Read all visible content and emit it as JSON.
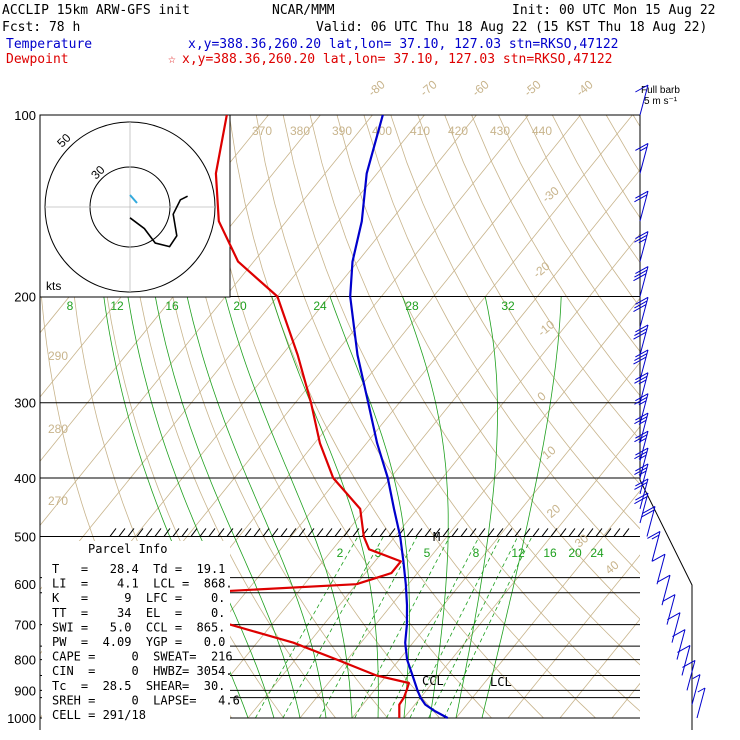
{
  "header": {
    "line1_left": "ACCLIP 15km ARW-GFS init",
    "line1_mid": "NCAR/MMM",
    "line1_right": "Init: 00 UTC Mon 15 Aug 22",
    "line2_left": "Fcst:   78 h",
    "line2_right": "Valid: 06 UTC Thu 18 Aug 22 (15 KST Thu 18 Aug 22)",
    "temp_label": "Temperature",
    "temp_info": "x,y=388.36,260.20   lat,lon= 37.10, 127.03  stn=RKSO,47122",
    "dew_label": "Dewpoint",
    "dew_info": "x,y=388.36,260.20   lat,lon= 37.10, 127.03  stn=RKSO,47122",
    "dew_star": "☆"
  },
  "barb_header": {
    "line1": "Full barb",
    "line2": "5 m s⁻¹"
  },
  "colors": {
    "temperature": "#0000cc",
    "dewpoint": "#dd0000",
    "isotherm": "#c8b48c",
    "dry_adiabat": "#c8b48c",
    "moist_adiabat": "#1fa01f",
    "mixing_ratio": "#1fa01f",
    "header_blue": "#0000cc",
    "header_red": "#dd0000",
    "cyan": "#33aadd"
  },
  "hodograph": {
    "units": "kts",
    "ring_labels": [
      "50",
      "30"
    ]
  },
  "parcel_info": {
    "title": "Parcel Info",
    "rows": [
      "T   =   28.4  Td =  19.1",
      "LI  =    4.1  LCL =  868.",
      "K   =     9  LFC =    0.",
      "TT  =    34  EL  =    0.",
      "SWI =   5.0  CCL =  865.",
      "PW  =  4.09  YGP =   0.0",
      "CAPE =     0  SWEAT=  216",
      "CIN  =     0  HWBZ= 3054.",
      "Tc  =  28.5  SHEAR=  30.",
      "SREH =     0  LAPSE=   4.6",
      "CELL = 291/18"
    ]
  },
  "level_markers": {
    "ccl": "CCL",
    "lcl": "LCL",
    "m": "M"
  },
  "chart_data": {
    "type": "line",
    "title": "",
    "xlabel": "",
    "ylabel": "",
    "pressure_levels": [
      100,
      200,
      300,
      400,
      500,
      600,
      700,
      800,
      900,
      1000
    ],
    "pressure_lines": [
      100,
      200,
      300,
      400,
      500,
      585,
      620,
      700,
      760,
      800,
      850,
      900,
      925,
      1000
    ],
    "ylim": [
      1000,
      100
    ],
    "y_scale": "log pressure (hPa)",
    "isotherm_labels": [
      "-80",
      "-70",
      "-60",
      "-50",
      "-40",
      "-30",
      "-20",
      "-10",
      "0",
      "10",
      "20",
      "30",
      "40"
    ],
    "theta_labels": [
      "370",
      "380",
      "390",
      "400",
      "410",
      "420",
      "430",
      "440",
      "290",
      "280",
      "270"
    ],
    "mixing_ratio_labels_upper": [
      "8",
      "12",
      "16",
      "20",
      "24",
      "28",
      "32"
    ],
    "mixing_ratio_labels_lower": [
      "2",
      "3",
      "5",
      "8",
      "12",
      "16",
      "20",
      "24"
    ],
    "series": [
      {
        "name": "Temperature",
        "unit": "degC",
        "points": [
          [
            1000,
            28.4
          ],
          [
            975,
            25.0
          ],
          [
            950,
            22.0
          ],
          [
            925,
            20.0
          ],
          [
            900,
            18.3
          ],
          [
            850,
            15.0
          ],
          [
            800,
            11.5
          ],
          [
            750,
            8.5
          ],
          [
            700,
            6.0
          ],
          [
            650,
            3.0
          ],
          [
            600,
            -0.5
          ],
          [
            550,
            -4.5
          ],
          [
            500,
            -9.0
          ],
          [
            450,
            -14.5
          ],
          [
            400,
            -20.5
          ],
          [
            350,
            -28.0
          ],
          [
            300,
            -36.0
          ],
          [
            250,
            -45.5
          ],
          [
            200,
            -56.0
          ],
          [
            175,
            -61.0
          ],
          [
            150,
            -65.5
          ],
          [
            125,
            -72.0
          ],
          [
            100,
            -78.0
          ]
        ]
      },
      {
        "name": "Dewpoint",
        "unit": "degC",
        "points": [
          [
            1000,
            19.1
          ],
          [
            950,
            17.0
          ],
          [
            925,
            16.8
          ],
          [
            900,
            16.2
          ],
          [
            875,
            15.5
          ],
          [
            850,
            8.0
          ],
          [
            800,
            -2.0
          ],
          [
            750,
            -13.0
          ],
          [
            700,
            -28.0
          ],
          [
            670,
            -50.0
          ],
          [
            650,
            -50.0
          ],
          [
            620,
            -40.0
          ],
          [
            600,
            -10.0
          ],
          [
            575,
            -5.0
          ],
          [
            550,
            -5.0
          ],
          [
            525,
            -13.0
          ],
          [
            500,
            -16.0
          ],
          [
            450,
            -21.0
          ],
          [
            400,
            -31.0
          ],
          [
            350,
            -39.0
          ],
          [
            300,
            -47.0
          ],
          [
            250,
            -57.0
          ],
          [
            200,
            -70.0
          ],
          [
            175,
            -83.0
          ],
          [
            150,
            -93.0
          ],
          [
            125,
            -101.0
          ],
          [
            100,
            -108.0
          ]
        ]
      }
    ],
    "hodograph_trace_kts": [
      [
        0,
        -3
      ],
      [
        -4,
        -6
      ],
      [
        -7,
        -10
      ],
      [
        -11,
        -11
      ],
      [
        -13,
        -8
      ],
      [
        -12,
        -2
      ],
      [
        -14,
        2
      ],
      [
        -16,
        3
      ]
    ],
    "wind_barbs": [
      {
        "p": 100,
        "speed_ms": 8
      },
      {
        "p": 125,
        "speed_ms": 15
      },
      {
        "p": 150,
        "speed_ms": 20
      },
      {
        "p": 175,
        "speed_ms": 25
      },
      {
        "p": 200,
        "speed_ms": 30
      },
      {
        "p": 225,
        "speed_ms": 30
      },
      {
        "p": 250,
        "speed_ms": 30
      },
      {
        "p": 275,
        "speed_ms": 30
      },
      {
        "p": 300,
        "speed_ms": 25
      },
      {
        "p": 325,
        "speed_ms": 25
      },
      {
        "p": 350,
        "speed_ms": 25
      },
      {
        "p": 375,
        "speed_ms": 25
      },
      {
        "p": 400,
        "speed_ms": 25
      },
      {
        "p": 425,
        "speed_ms": 25
      },
      {
        "p": 450,
        "speed_ms": 20
      },
      {
        "p": 475,
        "speed_ms": 20
      },
      {
        "p": 500,
        "speed_ms": 20
      },
      {
        "p": 550,
        "speed_ms": 15
      },
      {
        "p": 600,
        "speed_ms": 10
      },
      {
        "p": 650,
        "speed_ms": 10
      },
      {
        "p": 700,
        "speed_ms": 10
      },
      {
        "p": 750,
        "speed_ms": 10
      },
      {
        "p": 800,
        "speed_ms": 10
      },
      {
        "p": 850,
        "speed_ms": 10
      },
      {
        "p": 900,
        "speed_ms": 10
      },
      {
        "p": 950,
        "speed_ms": 5
      },
      {
        "p": 1000,
        "speed_ms": 5
      }
    ]
  }
}
